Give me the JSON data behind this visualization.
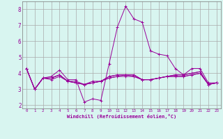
{
  "xlabel": "Windchill (Refroidissement éolien,°C)",
  "ylabel": "",
  "background_color": "#d8f5f0",
  "grid_color": "#aaaaaa",
  "line_color": "#990099",
  "x_ticks": [
    0,
    1,
    2,
    3,
    4,
    5,
    6,
    7,
    8,
    9,
    10,
    11,
    12,
    13,
    14,
    15,
    16,
    17,
    18,
    19,
    20,
    21,
    22,
    23
  ],
  "y_ticks": [
    2,
    3,
    4,
    5,
    6,
    7,
    8
  ],
  "ylim": [
    1.8,
    8.5
  ],
  "xlim": [
    -0.5,
    23.5
  ],
  "series": [
    [
      4.3,
      3.0,
      3.7,
      3.8,
      4.2,
      3.6,
      3.6,
      2.2,
      2.4,
      2.3,
      4.6,
      6.9,
      8.2,
      7.4,
      7.2,
      5.4,
      5.2,
      5.1,
      4.3,
      3.9,
      4.3,
      4.3,
      3.4,
      3.4
    ],
    [
      4.3,
      3.0,
      3.7,
      3.7,
      3.9,
      3.5,
      3.5,
      3.3,
      3.5,
      3.5,
      3.8,
      3.9,
      3.9,
      3.9,
      3.6,
      3.6,
      3.7,
      3.8,
      3.8,
      3.8,
      3.9,
      4.0,
      3.3,
      3.4
    ],
    [
      4.3,
      3.0,
      3.7,
      3.7,
      3.9,
      3.5,
      3.4,
      3.3,
      3.4,
      3.5,
      3.8,
      3.9,
      3.9,
      3.9,
      3.6,
      3.6,
      3.7,
      3.8,
      3.9,
      3.9,
      4.0,
      4.1,
      3.3,
      3.4
    ],
    [
      4.3,
      3.0,
      3.7,
      3.7,
      3.9,
      3.5,
      3.4,
      3.3,
      3.4,
      3.5,
      3.7,
      3.8,
      3.9,
      3.8,
      3.6,
      3.6,
      3.7,
      3.8,
      3.9,
      3.9,
      4.0,
      4.1,
      3.3,
      3.4
    ],
    [
      4.3,
      3.0,
      3.7,
      3.6,
      3.8,
      3.5,
      3.4,
      3.3,
      3.4,
      3.5,
      3.7,
      3.8,
      3.8,
      3.8,
      3.6,
      3.6,
      3.7,
      3.8,
      3.8,
      3.8,
      3.9,
      4.0,
      3.3,
      3.4
    ]
  ]
}
